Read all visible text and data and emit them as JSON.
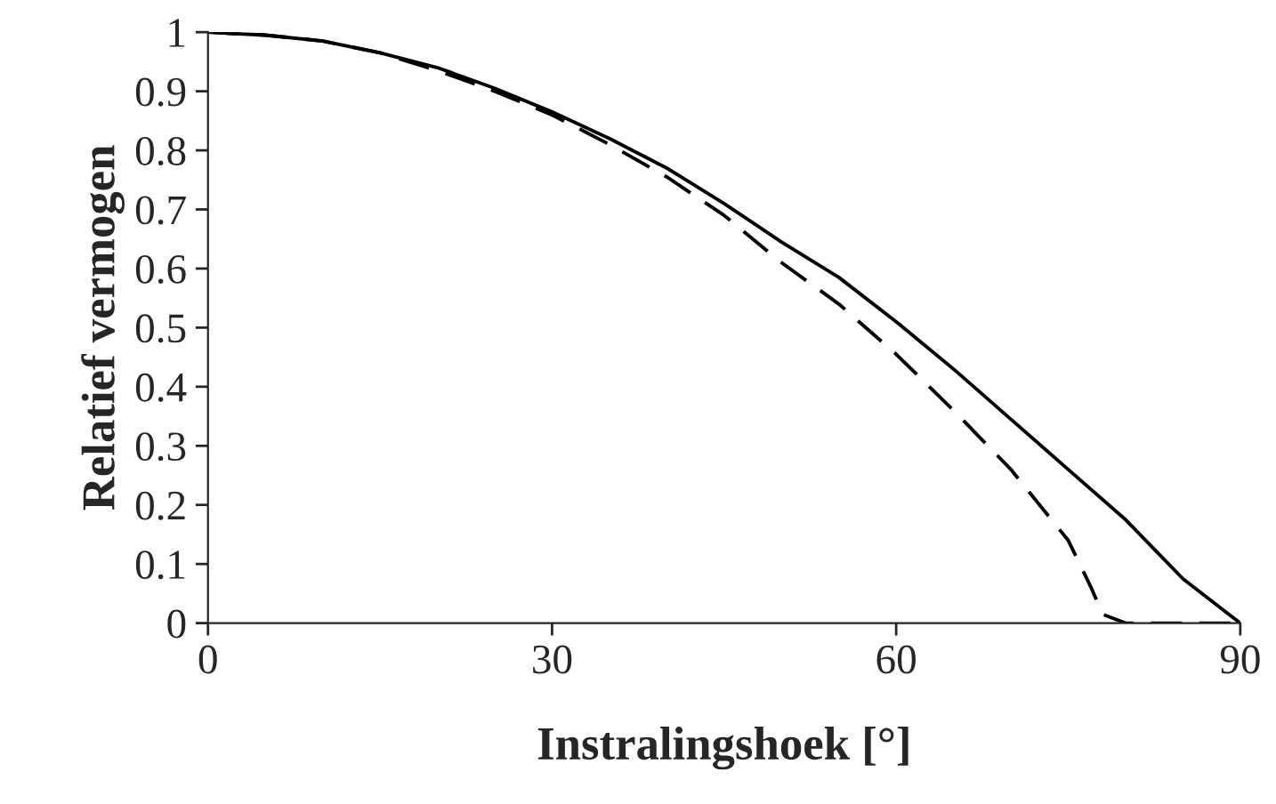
{
  "chart_data": {
    "type": "line",
    "xlabel": "Instralingshoek [°]",
    "ylabel": "Relatief vermogen",
    "xlim": [
      0,
      90
    ],
    "xticks": [
      0,
      30,
      60,
      90
    ],
    "ylim": [
      0,
      1
    ],
    "yticks": [
      0,
      0.1,
      0.2,
      0.3,
      0.4,
      0.5,
      0.6,
      0.7,
      0.8,
      0.9,
      1
    ],
    "grid": false,
    "marker": "none",
    "series": [
      {
        "color": "#000000",
        "line_style": "solid",
        "x": [
          0,
          5,
          10,
          15,
          20,
          25,
          30,
          35,
          40,
          45,
          50,
          55,
          60,
          65,
          70,
          75,
          80,
          82,
          85,
          88,
          90
        ],
        "values": [
          1,
          0.995,
          0.985,
          0.965,
          0.94,
          0.905,
          0.865,
          0.82,
          0.77,
          0.71,
          0.645,
          0.585,
          0.51,
          0.43,
          0.345,
          0.26,
          0.175,
          0.135,
          0.075,
          0.03,
          0
        ]
      },
      {
        "color": "#000000",
        "line_style": "dashed",
        "x": [
          0,
          5,
          10,
          15,
          20,
          25,
          30,
          35,
          40,
          45,
          50,
          55,
          60,
          65,
          70,
          75,
          77,
          78,
          80,
          85,
          90
        ],
        "values": [
          1,
          0.995,
          0.985,
          0.965,
          0.935,
          0.9,
          0.86,
          0.81,
          0.755,
          0.69,
          0.61,
          0.54,
          0.455,
          0.36,
          0.26,
          0.14,
          0.06,
          0.015,
          0,
          0,
          0
        ]
      }
    ]
  }
}
